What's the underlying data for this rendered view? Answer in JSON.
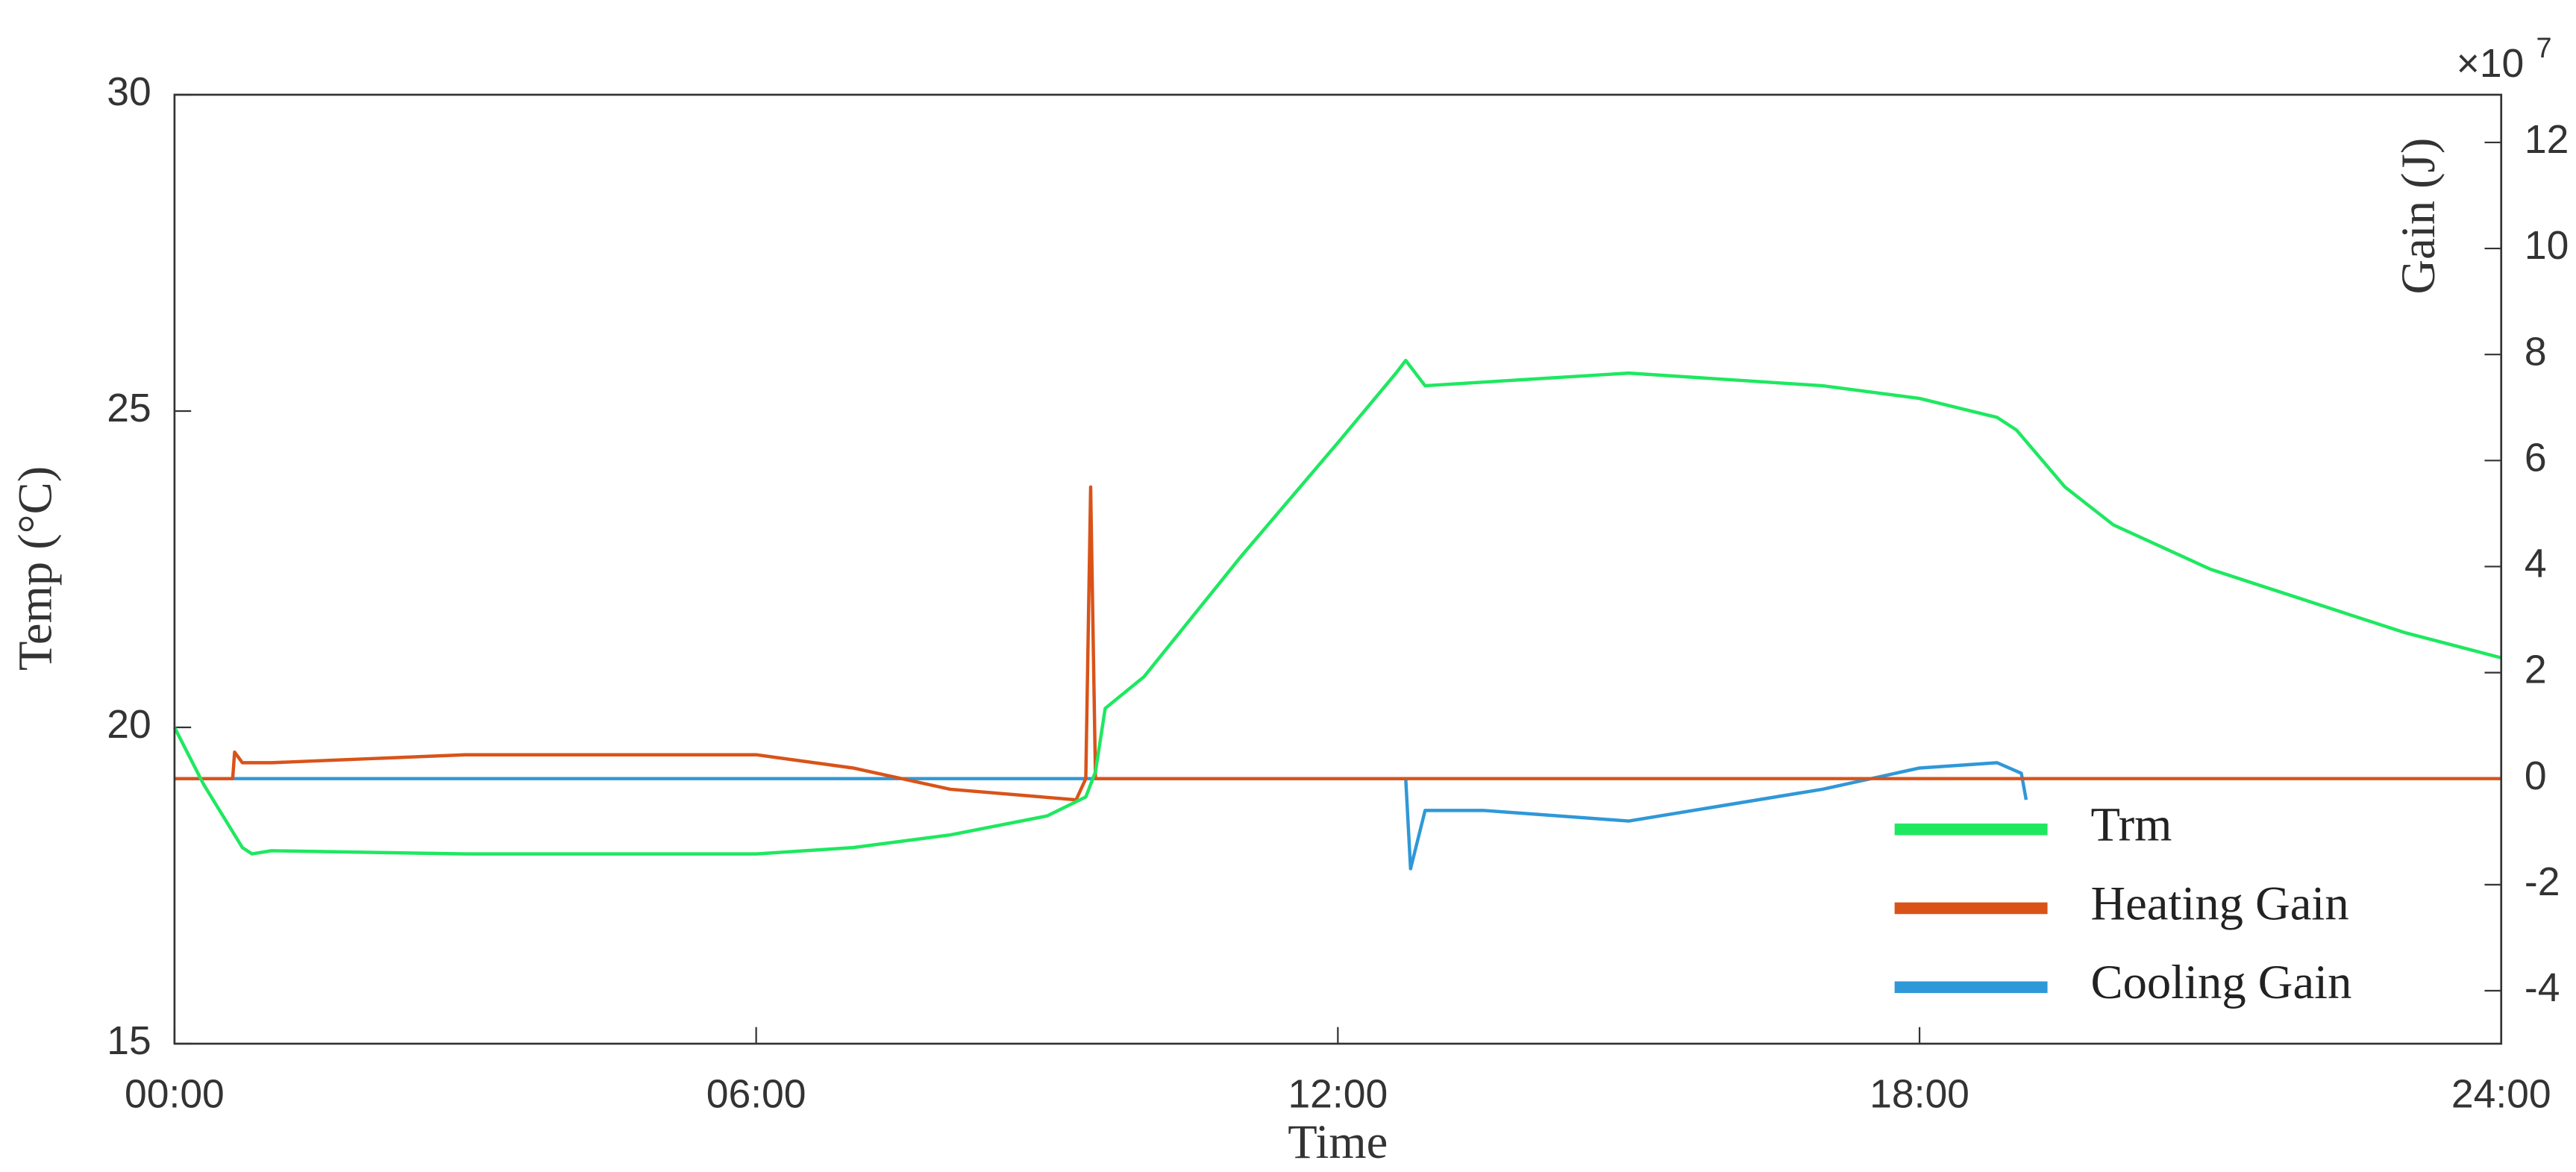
{
  "chart_data": {
    "type": "line",
    "xlabel": "Time",
    "ylabel": "Temp (°C)",
    "y2label": "Gain (J)",
    "y2_multiplier": "×10",
    "y2_exponent": 7,
    "xlim": [
      0,
      24
    ],
    "xticks": [
      {
        "value": 0,
        "label": "00:00"
      },
      {
        "value": 6,
        "label": "06:00"
      },
      {
        "value": 12,
        "label": "12:00"
      },
      {
        "value": 18,
        "label": "18:00"
      },
      {
        "value": 24,
        "label": "24:00"
      }
    ],
    "ylim": [
      15,
      30
    ],
    "yticks": [
      15,
      20,
      25,
      30
    ],
    "y2lim": [
      -5,
      12.9
    ],
    "y2ticks": [
      -4,
      -2,
      0,
      2,
      4,
      6,
      8,
      10,
      12
    ],
    "legend": "lower right",
    "grid": false,
    "series": [
      {
        "name": "Cooling Gain",
        "color": "#2f98d8",
        "axis": "y2",
        "x": [
          0,
          9.5,
          12.7,
          12.75,
          12.9,
          13.5,
          15,
          17,
          18,
          18.8,
          19.05,
          19.1
        ],
        "values": [
          0,
          0,
          0,
          -1.7,
          -0.6,
          -0.6,
          -0.8,
          -0.2,
          0.2,
          0.3,
          0.1,
          -0.4
        ]
      },
      {
        "name": "Heating Gain",
        "color": "#d95319",
        "axis": "y2",
        "x": [
          0,
          0.6,
          0.62,
          0.7,
          1,
          3,
          6,
          7,
          8,
          9.3,
          9.4,
          9.45,
          9.5,
          24
        ],
        "values": [
          0,
          0,
          0.5,
          0.3,
          0.3,
          0.45,
          0.45,
          0.2,
          -0.2,
          -0.4,
          0,
          5.5,
          0,
          0
        ]
      },
      {
        "name": "Trm",
        "color": "#1ee860",
        "axis": "y",
        "x": [
          0,
          0.3,
          0.7,
          0.8,
          1,
          3,
          6,
          7,
          8,
          9,
          9.4,
          9.5,
          9.6,
          10,
          11,
          12,
          12.6,
          12.7,
          12.9,
          15,
          17,
          18,
          18.8,
          19,
          19.5,
          20,
          21,
          22,
          23,
          24
        ],
        "values": [
          20.0,
          19.1,
          18.1,
          18.0,
          18.05,
          18.0,
          18.0,
          18.1,
          18.3,
          18.6,
          18.9,
          19.3,
          20.3,
          20.8,
          22.7,
          24.5,
          25.6,
          25.8,
          25.4,
          25.6,
          25.4,
          25.2,
          24.9,
          24.7,
          23.8,
          23.2,
          22.5,
          22.0,
          21.5,
          21.1
        ]
      }
    ]
  }
}
